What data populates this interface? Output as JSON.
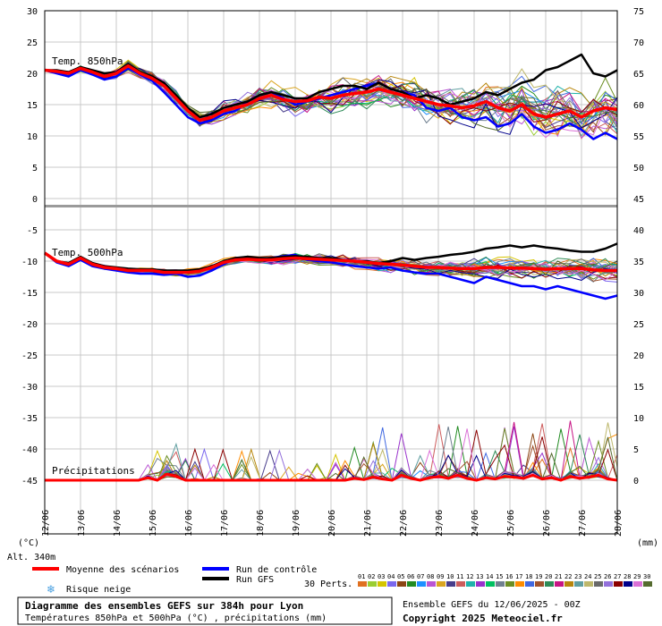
{
  "chart_data": {
    "type": "line",
    "title": "Diagramme des ensembles GEFS sur 384h pour Lyon",
    "subtitle": "Températures 850hPa et 500hPa (°C) , précipitations (mm)",
    "run_info": "Ensemble GEFS du 12/06/2025 - 00Z",
    "copyright": "Copyright 2025 Meteociel.fr",
    "altitude": "Alt. 340m",
    "left_unit": "(°C)",
    "right_unit": "(mm)",
    "perts_label": "30 Perts.",
    "pert_numbers": [
      "01",
      "02",
      "03",
      "04",
      "05",
      "06",
      "07",
      "08",
      "09",
      "10",
      "11",
      "12",
      "13",
      "14",
      "15",
      "16",
      "17",
      "18",
      "19",
      "20",
      "21",
      "22",
      "23",
      "24",
      "25",
      "26",
      "27",
      "28",
      "29",
      "30"
    ],
    "pert_colors": [
      "#e07020",
      "#9acd32",
      "#d4c400",
      "#7b68ee",
      "#8b4513",
      "#228b22",
      "#1e90ff",
      "#ba55d3",
      "#daa520",
      "#483d8b",
      "#cd5c5c",
      "#20b2aa",
      "#9932cc",
      "#00c060",
      "#708090",
      "#6b8e23",
      "#ff8c00",
      "#4169e1",
      "#a0522d",
      "#2e8b57",
      "#c71585",
      "#b8860b",
      "#5f9ea0",
      "#bdb76b",
      "#696969",
      "#9370db",
      "#8b0000",
      "#00008b",
      "#da70d6",
      "#556b2f"
    ],
    "legend": {
      "mean": "Moyenne des scénarios",
      "control": "Run de contrôle",
      "gfs": "Run GFS",
      "snow": "Risque neige",
      "mean_color": "#ff0000",
      "control_color": "#0000ff",
      "gfs_color": "#000000",
      "snow_color": "#4aa0e0"
    },
    "panels": {
      "t850_label": "Temp. 850hPa",
      "t500_label": "Temp. 500hPa",
      "precip_label": "Précipitations",
      "t850_right_ticks": [
        45,
        50,
        55,
        60,
        65,
        70,
        75
      ],
      "t500_right_ticks": [
        0,
        5,
        10,
        15,
        20,
        25,
        30,
        35,
        40
      ]
    },
    "y_left_ticks": [
      30,
      25,
      20,
      15,
      10,
      5,
      0,
      -5,
      -10,
      -15,
      -20,
      -25,
      -30,
      -35,
      -40,
      -45
    ],
    "x_ticks": [
      "12/06",
      "13/06",
      "14/06",
      "15/06",
      "16/06",
      "17/06",
      "18/06",
      "19/06",
      "20/06",
      "21/06",
      "22/06",
      "23/06",
      "24/06",
      "25/06",
      "26/06",
      "27/06",
      "28/06"
    ],
    "series_t850": {
      "mean": [
        20.5,
        20.3,
        20.0,
        20.8,
        20.2,
        19.5,
        20.0,
        21.2,
        20.0,
        19.2,
        18.0,
        16.0,
        14.0,
        12.5,
        13.0,
        14.0,
        14.5,
        15.0,
        16.0,
        16.5,
        15.8,
        15.5,
        15.6,
        16.2,
        16.0,
        16.5,
        16.8,
        17.0,
        17.5,
        17.0,
        16.5,
        16.0,
        15.5,
        15.0,
        14.8,
        14.5,
        14.8,
        15.5,
        14.5,
        14.0,
        15.0,
        13.5,
        13.0,
        13.5,
        14.0,
        13.0,
        14.0,
        14.5,
        14.2
      ],
      "control": [
        20.5,
        20.0,
        19.5,
        20.5,
        19.8,
        19.0,
        19.5,
        20.8,
        19.8,
        18.8,
        17.0,
        15.0,
        13.0,
        12.0,
        12.5,
        13.5,
        14.0,
        15.5,
        16.5,
        17.0,
        16.0,
        15.0,
        15.5,
        16.0,
        16.5,
        17.0,
        17.5,
        18.0,
        18.5,
        17.5,
        17.0,
        16.5,
        14.5,
        14.0,
        14.5,
        13.0,
        12.5,
        13.0,
        11.5,
        12.0,
        13.5,
        11.5,
        10.5,
        11.0,
        12.0,
        11.0,
        9.5,
        10.5,
        9.5
      ],
      "gfs": [
        20.5,
        20.5,
        20.2,
        21.0,
        20.5,
        20.0,
        20.2,
        21.5,
        20.2,
        19.5,
        18.5,
        16.5,
        14.5,
        13.0,
        13.5,
        14.5,
        15.0,
        15.5,
        16.5,
        17.0,
        16.5,
        16.0,
        16.0,
        17.0,
        17.5,
        18.0,
        18.0,
        17.5,
        18.5,
        17.5,
        17.0,
        16.0,
        16.5,
        16.0,
        15.0,
        15.5,
        16.0,
        17.0,
        16.5,
        17.5,
        18.5,
        19.0,
        20.5,
        21.0,
        22.0,
        23.0,
        20.0,
        19.5,
        20.5
      ]
    },
    "series_t500": {
      "mean": [
        -8.7,
        -10.0,
        -10.5,
        -9.5,
        -10.5,
        -11.0,
        -11.2,
        -11.5,
        -11.5,
        -11.5,
        -11.8,
        -11.8,
        -11.8,
        -11.6,
        -11.0,
        -10.2,
        -9.8,
        -9.7,
        -9.8,
        -9.8,
        -9.6,
        -9.5,
        -9.6,
        -9.7,
        -9.8,
        -9.9,
        -10.0,
        -10.2,
        -10.4,
        -10.5,
        -10.6,
        -10.8,
        -11.0,
        -11.0,
        -11.1,
        -11.2,
        -11.2,
        -11.0,
        -11.0,
        -11.1,
        -11.1,
        -11.2,
        -11.3,
        -11.2,
        -11.2,
        -11.2,
        -11.4,
        -11.5,
        -11.5
      ],
      "control": [
        -8.7,
        -10.2,
        -10.8,
        -9.8,
        -10.8,
        -11.2,
        -11.5,
        -11.8,
        -12.0,
        -12.0,
        -12.2,
        -12.0,
        -12.5,
        -12.3,
        -11.5,
        -10.5,
        -9.5,
        -9.5,
        -9.8,
        -9.5,
        -9.2,
        -9.0,
        -9.8,
        -10.0,
        -10.2,
        -10.5,
        -10.8,
        -11.0,
        -11.2,
        -11.0,
        -11.5,
        -11.8,
        -12.0,
        -12.0,
        -12.5,
        -13.0,
        -13.5,
        -12.5,
        -13.0,
        -13.5,
        -14.0,
        -14.0,
        -14.5,
        -14.0,
        -14.5,
        -15.0,
        -15.5,
        -16.0,
        -15.5
      ],
      "gfs": [
        -8.7,
        -10.0,
        -10.3,
        -9.3,
        -10.3,
        -10.8,
        -11.0,
        -11.2,
        -11.3,
        -11.3,
        -11.5,
        -11.5,
        -11.5,
        -11.3,
        -10.8,
        -10.0,
        -9.5,
        -9.3,
        -9.5,
        -9.5,
        -9.3,
        -9.2,
        -9.3,
        -9.5,
        -9.5,
        -9.8,
        -10.0,
        -10.0,
        -10.3,
        -10.0,
        -9.5,
        -9.8,
        -9.5,
        -9.3,
        -9.0,
        -8.8,
        -8.5,
        -8.0,
        -7.8,
        -7.5,
        -7.8,
        -7.5,
        -7.8,
        -8.0,
        -8.3,
        -8.5,
        -8.5,
        -8.0,
        -7.2
      ]
    },
    "series_precip_mean_mm": [
      0,
      0,
      0,
      0,
      0,
      0,
      0,
      0,
      0,
      0,
      0,
      0.4,
      0,
      1.0,
      0.6,
      0,
      0,
      0,
      0,
      0,
      0,
      0,
      0,
      0,
      0,
      0,
      0,
      0,
      0,
      0,
      0,
      0,
      0,
      0.3,
      0.1,
      0.5,
      0.2,
      0,
      0.8,
      0.3,
      0,
      0.4,
      0.6,
      0.3,
      0.8,
      0.3,
      0,
      0.4,
      0.2,
      0.6,
      0.5,
      0.3,
      0.8,
      0.2,
      0.4,
      0,
      0.6,
      0.3,
      0.5,
      0.8,
      0.2,
      0
    ],
    "x_range_hours": [
      0,
      384
    ],
    "grid": true
  }
}
